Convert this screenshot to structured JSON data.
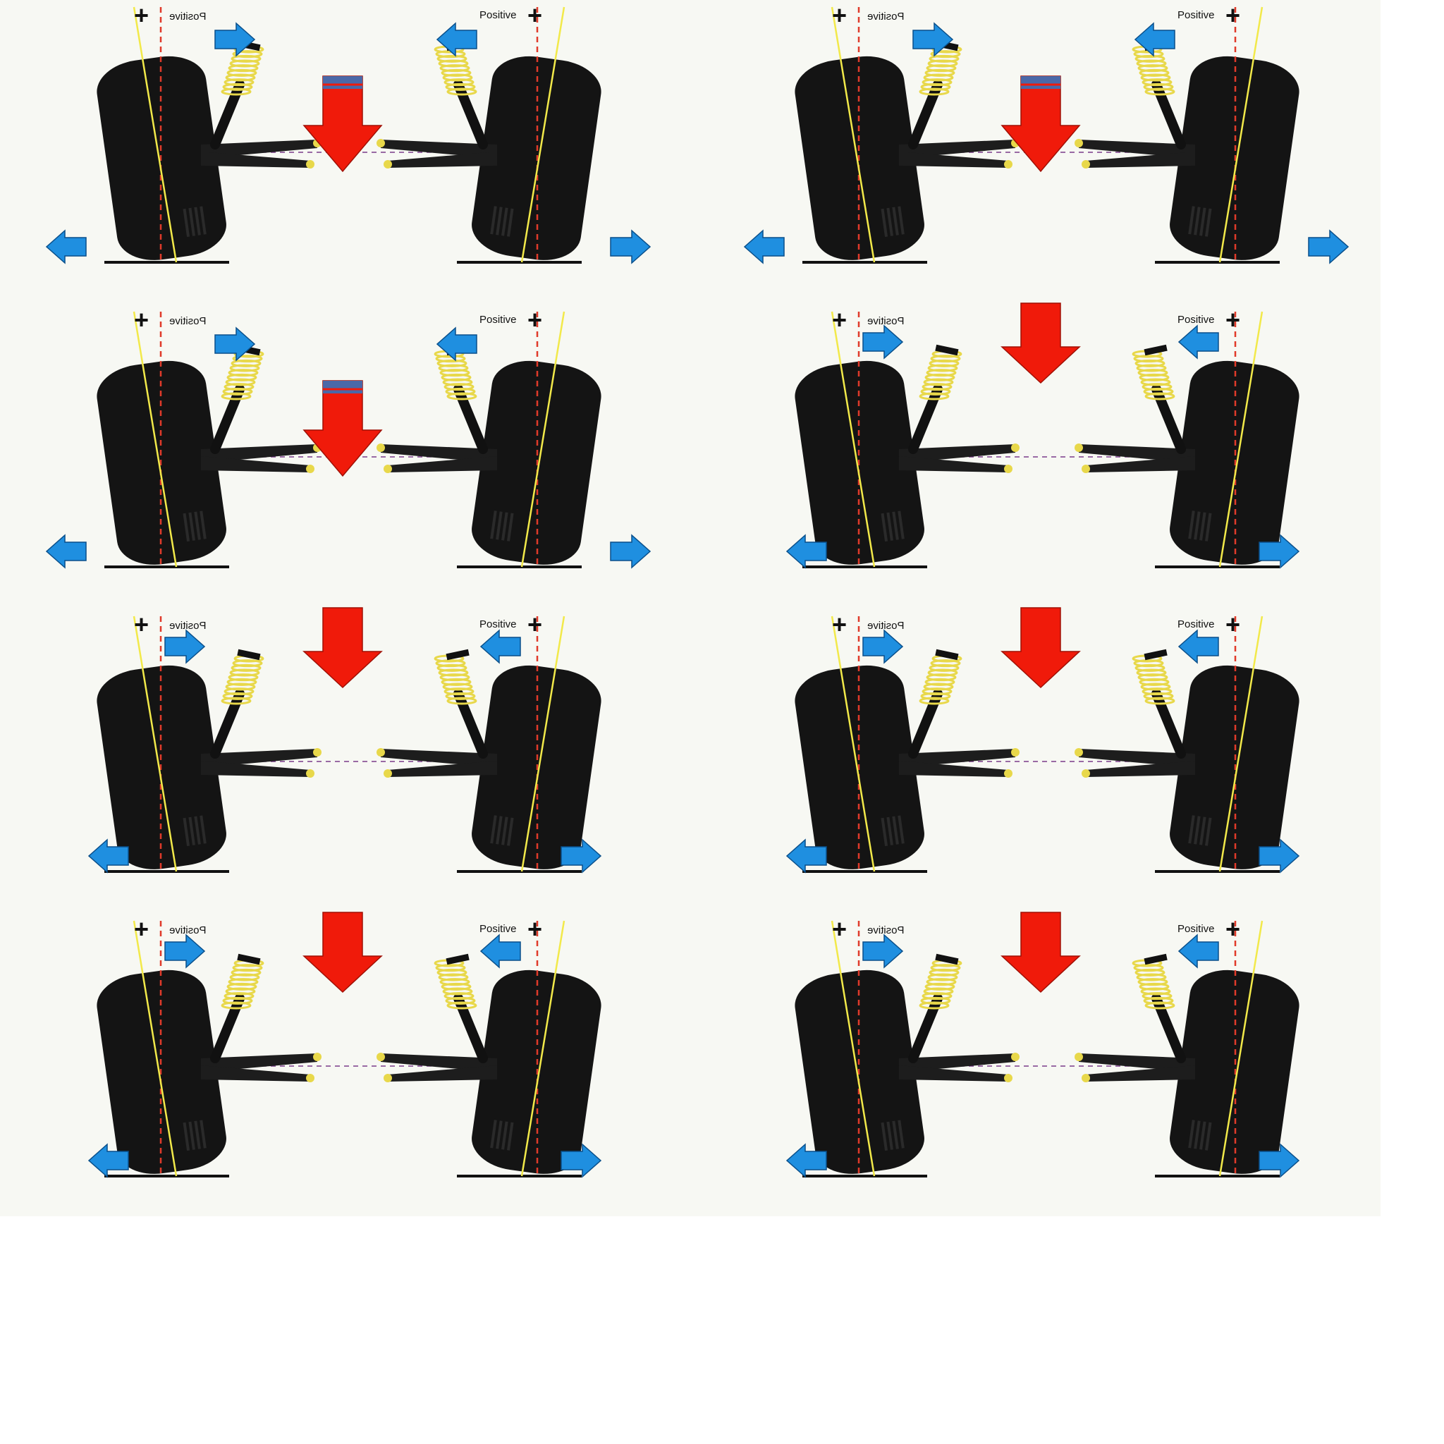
{
  "diagram": {
    "subject": "camber-under-body-roll-animation-frames",
    "colors": {
      "background": "#f7f8f3",
      "tire": "#141414",
      "spring": "#e8d84a",
      "camber_line": "#f2e94a",
      "reference_line": "#e03a2a",
      "axle_line": "#7a3a8a",
      "lateral_arrow": "#1f8fe0",
      "load_arrow": "#f01a0a"
    },
    "frames": [
      {
        "id": 1,
        "left_label": "Positive",
        "right_label": "Positive",
        "left_sign": "+",
        "right_sign": "+"
      },
      {
        "id": 2,
        "left_label": "Positive",
        "right_label": "Positive",
        "left_sign": "+",
        "right_sign": "+"
      },
      {
        "id": 3,
        "left_label": "Positive",
        "right_label": "Positive",
        "left_sign": "+",
        "right_sign": "+"
      },
      {
        "id": 4,
        "left_label": "Positive",
        "right_label": "Positive",
        "left_sign": "+",
        "right_sign": "+"
      },
      {
        "id": 5,
        "left_label": "Positive",
        "right_label": "Positive",
        "left_sign": "+",
        "right_sign": "+"
      },
      {
        "id": 6,
        "left_label": "Positive",
        "right_label": "Positive",
        "left_sign": "+",
        "right_sign": "+"
      },
      {
        "id": 7,
        "left_label": "Positive",
        "right_label": "Positive",
        "left_sign": "+",
        "right_sign": "+"
      },
      {
        "id": 8,
        "left_label": "Positive",
        "right_label": "Positive",
        "left_sign": "+",
        "right_sign": "+"
      }
    ]
  }
}
